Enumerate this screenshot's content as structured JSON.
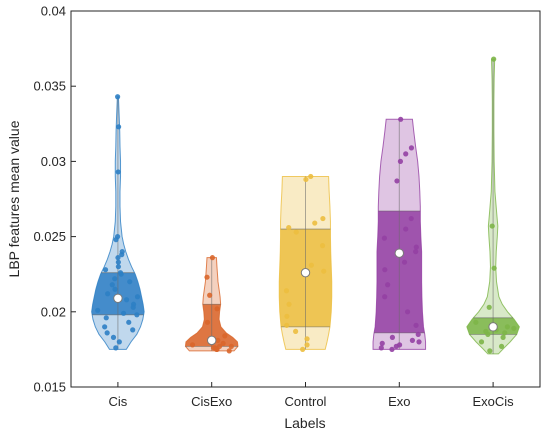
{
  "chart_data": {
    "type": "violin",
    "xlabel": "Labels",
    "ylabel": "LBP features mean value",
    "ylim": [
      0.015,
      0.04
    ],
    "yticks": [
      0.015,
      0.02,
      0.025,
      0.03,
      0.035,
      0.04
    ],
    "ytick_labels": [
      "0.015",
      "0.02",
      "0.025",
      "0.03",
      "0.035",
      "0.04"
    ],
    "categories": [
      "Cis",
      "CisExo",
      "Control",
      "Exo",
      "ExoCis"
    ],
    "colors": [
      "#2e7fc4",
      "#d9662b",
      "#ecbe3f",
      "#9440a3",
      "#7db548"
    ],
    "grid": false,
    "series": [
      {
        "name": "Cis",
        "median": 0.0209,
        "q1": 0.0198,
        "q3": 0.0226,
        "min": 0.0175,
        "max": 0.0343,
        "density": [
          [
            0.0175,
            0.32
          ],
          [
            0.018,
            0.5
          ],
          [
            0.0185,
            0.72
          ],
          [
            0.019,
            0.86
          ],
          [
            0.0195,
            0.95
          ],
          [
            0.02,
            1.0
          ],
          [
            0.0205,
            0.96
          ],
          [
            0.021,
            0.9
          ],
          [
            0.0215,
            0.84
          ],
          [
            0.022,
            0.76
          ],
          [
            0.0225,
            0.66
          ],
          [
            0.023,
            0.52
          ],
          [
            0.0235,
            0.4
          ],
          [
            0.024,
            0.3
          ],
          [
            0.0245,
            0.22
          ],
          [
            0.025,
            0.16
          ],
          [
            0.026,
            0.1
          ],
          [
            0.027,
            0.08
          ],
          [
            0.028,
            0.08
          ],
          [
            0.029,
            0.1
          ],
          [
            0.03,
            0.1
          ],
          [
            0.031,
            0.08
          ],
          [
            0.032,
            0.07
          ],
          [
            0.033,
            0.05
          ],
          [
            0.0343,
            0.02
          ]
        ],
        "points": [
          0.0343,
          0.0323,
          0.0293,
          0.025,
          0.0248,
          0.024,
          0.0238,
          0.0236,
          0.0233,
          0.023,
          0.0228,
          0.0226,
          0.0225,
          0.0222,
          0.022,
          0.0218,
          0.0215,
          0.0212,
          0.021,
          0.0208,
          0.0205,
          0.0203,
          0.0201,
          0.0199,
          0.0198,
          0.0196,
          0.0193,
          0.019,
          0.0188,
          0.0186,
          0.0183,
          0.018,
          0.0176
        ]
      },
      {
        "name": "CisExo",
        "median": 0.0181,
        "q1": 0.0177,
        "q3": 0.0205,
        "min": 0.0174,
        "max": 0.0236,
        "density": [
          [
            0.0174,
            0.85
          ],
          [
            0.0177,
            1.0
          ],
          [
            0.018,
            0.98
          ],
          [
            0.0183,
            0.8
          ],
          [
            0.0186,
            0.55
          ],
          [
            0.019,
            0.35
          ],
          [
            0.0195,
            0.28
          ],
          [
            0.02,
            0.3
          ],
          [
            0.0205,
            0.34
          ],
          [
            0.021,
            0.32
          ],
          [
            0.0215,
            0.28
          ],
          [
            0.022,
            0.24
          ],
          [
            0.0225,
            0.22
          ],
          [
            0.023,
            0.2
          ],
          [
            0.0236,
            0.18
          ]
        ],
        "points": [
          0.0236,
          0.0223,
          0.0211,
          0.0202,
          0.0193,
          0.0184,
          0.0181,
          0.0179,
          0.0178,
          0.0177,
          0.0177,
          0.0176,
          0.0176,
          0.0175,
          0.0175,
          0.0174
        ]
      },
      {
        "name": "Control",
        "median": 0.0226,
        "q1": 0.019,
        "q3": 0.0255,
        "min": 0.0175,
        "max": 0.029,
        "density": [
          [
            0.0175,
            0.75
          ],
          [
            0.018,
            0.82
          ],
          [
            0.0185,
            0.88
          ],
          [
            0.019,
            0.93
          ],
          [
            0.02,
            0.98
          ],
          [
            0.021,
            1.0
          ],
          [
            0.022,
            1.0
          ],
          [
            0.023,
            0.98
          ],
          [
            0.024,
            0.96
          ],
          [
            0.025,
            0.95
          ],
          [
            0.026,
            0.95
          ],
          [
            0.027,
            0.93
          ],
          [
            0.028,
            0.9
          ],
          [
            0.029,
            0.88
          ]
        ],
        "points": [
          0.029,
          0.0288,
          0.0262,
          0.0259,
          0.0256,
          0.0253,
          0.0244,
          0.0231,
          0.0227,
          0.0214,
          0.0205,
          0.0197,
          0.0191,
          0.0187,
          0.0182,
          0.0178,
          0.0175
        ]
      },
      {
        "name": "Exo",
        "median": 0.0239,
        "q1": 0.0186,
        "q3": 0.0267,
        "min": 0.0175,
        "max": 0.0328,
        "density": [
          [
            0.0175,
            1.0
          ],
          [
            0.018,
            1.0
          ],
          [
            0.0185,
            0.97
          ],
          [
            0.019,
            0.92
          ],
          [
            0.02,
            0.88
          ],
          [
            0.021,
            0.86
          ],
          [
            0.022,
            0.85
          ],
          [
            0.023,
            0.85
          ],
          [
            0.024,
            0.85
          ],
          [
            0.025,
            0.82
          ],
          [
            0.026,
            0.8
          ],
          [
            0.027,
            0.8
          ],
          [
            0.028,
            0.78
          ],
          [
            0.029,
            0.75
          ],
          [
            0.03,
            0.7
          ],
          [
            0.031,
            0.62
          ],
          [
            0.032,
            0.55
          ],
          [
            0.0328,
            0.5
          ]
        ],
        "points": [
          0.0328,
          0.0309,
          0.0305,
          0.03,
          0.0287,
          0.0262,
          0.0255,
          0.0249,
          0.0243,
          0.024,
          0.0233,
          0.0228,
          0.0218,
          0.021,
          0.02,
          0.0191,
          0.0185,
          0.0183,
          0.0181,
          0.018,
          0.0179,
          0.0178,
          0.0177,
          0.0176,
          0.0175
        ]
      },
      {
        "name": "ExoCis",
        "median": 0.019,
        "q1": 0.0185,
        "q3": 0.0196,
        "min": 0.0172,
        "max": 0.0368,
        "density": [
          [
            0.0172,
            0.2
          ],
          [
            0.0176,
            0.42
          ],
          [
            0.018,
            0.65
          ],
          [
            0.0185,
            0.9
          ],
          [
            0.019,
            1.0
          ],
          [
            0.0195,
            0.8
          ],
          [
            0.02,
            0.55
          ],
          [
            0.0205,
            0.35
          ],
          [
            0.021,
            0.22
          ],
          [
            0.022,
            0.13
          ],
          [
            0.023,
            0.1
          ],
          [
            0.024,
            0.12
          ],
          [
            0.025,
            0.16
          ],
          [
            0.0257,
            0.18
          ],
          [
            0.0265,
            0.14
          ],
          [
            0.028,
            0.07
          ],
          [
            0.03,
            0.04
          ],
          [
            0.032,
            0.03
          ],
          [
            0.034,
            0.03
          ],
          [
            0.0355,
            0.04
          ],
          [
            0.0368,
            0.06
          ]
        ],
        "points": [
          0.0368,
          0.0257,
          0.0229,
          0.0203,
          0.0193,
          0.019,
          0.0189,
          0.0188,
          0.0187,
          0.0186,
          0.0185,
          0.0183,
          0.018,
          0.0177,
          0.0174
        ]
      }
    ]
  }
}
